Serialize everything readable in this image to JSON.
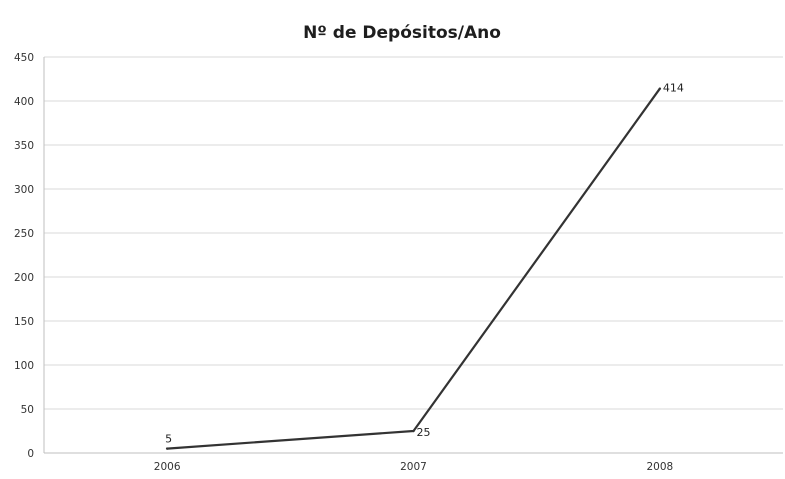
{
  "chart_data": {
    "type": "line",
    "title": "Nº de Depósitos/Ano",
    "categories": [
      "2006",
      "2007",
      "2008"
    ],
    "series": [
      {
        "values": [
          5,
          25,
          414
        ]
      }
    ],
    "data_labels": [
      "5",
      "25",
      "414"
    ],
    "yticks": [
      0,
      50,
      100,
      150,
      200,
      250,
      300,
      350,
      400,
      450
    ],
    "ylim": [
      0,
      450
    ],
    "grid": "horizontal",
    "legend": "none",
    "colors": {
      "line": "#333333",
      "grid": "#d9d9d9",
      "axis": "#bfbfbf",
      "background": "#ffffff"
    }
  }
}
